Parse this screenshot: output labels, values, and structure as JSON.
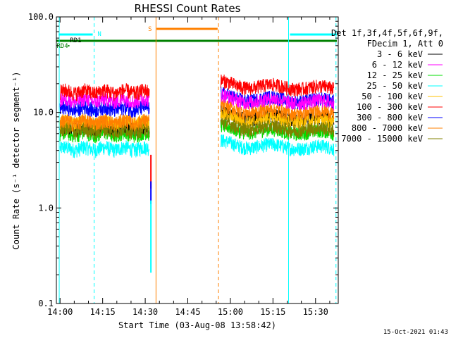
{
  "chart_data": {
    "type": "line",
    "title": "RHESSI Count Rates",
    "xlabel": "Start Time (03-Aug-08 13:58:42)",
    "ylabel": "Count Rate (s⁻¹ detector segment⁻¹)",
    "y_scale": "log",
    "ylim": [
      0.1,
      100.0
    ],
    "xlim": [
      "13:58:42",
      "15:38:00"
    ],
    "y_ticks": [
      "0.1",
      "1.0",
      "10.0",
      "100.0"
    ],
    "x_ticks": [
      "14:00",
      "14:15",
      "14:30",
      "14:45",
      "15:00",
      "15:15",
      "15:30"
    ],
    "x_tick_minutes": [
      0,
      15,
      30,
      45,
      60,
      75,
      90
    ],
    "x_start_minutes": -1.3,
    "x_end_minutes": 98,
    "legend_header": [
      "Det 1f,3f,4f,5f,6f,9f,",
      "FDecim 1, Att 0"
    ],
    "legend_placement": "right",
    "data_gap": {
      "from": "14:32",
      "to": "14:52"
    },
    "series": [
      {
        "name": "3 - 6 keV",
        "color": "#000000",
        "before": 7.0,
        "after": 9.0
      },
      {
        "name": "6 - 12 keV",
        "color": "#ff00ff",
        "before": 13.5,
        "after": 13.5
      },
      {
        "name": "12 - 25 keV",
        "color": "#00dd00",
        "before": 6.0,
        "after": 6.5
      },
      {
        "name": "25 - 50 keV",
        "color": "#00ffff",
        "before": 4.2,
        "after": 4.5
      },
      {
        "name": "50 - 100 keV",
        "color": "#ffc000",
        "before": 7.8,
        "after": 8.5
      },
      {
        "name": "100 - 300 keV",
        "color": "#ff0000",
        "before": 16.5,
        "after": 19.0
      },
      {
        "name": "300 - 800 keV",
        "color": "#0000ff",
        "before": 11.0,
        "after": 14.0
      },
      {
        "name": "800 - 7000 keV",
        "color": "#ff8000",
        "before": 8.0,
        "after": 10.5
      },
      {
        "name": "7000 - 15000 keV",
        "color": "#808000",
        "before": 6.5,
        "after": 7.0
      }
    ],
    "annotations": [
      {
        "text": "N",
        "color": "#00ffff"
      },
      {
        "text": "S",
        "color": "#ff8000"
      },
      {
        "text": "RD1",
        "color": "#000000"
      },
      {
        "text": "RD4",
        "color": "#008000"
      }
    ],
    "flag_colors": {
      "night": "#00ffff",
      "saa": "#ff8000",
      "decimation": "#008000"
    },
    "footer_timestamp": "15-Oct-2021 01:43"
  }
}
